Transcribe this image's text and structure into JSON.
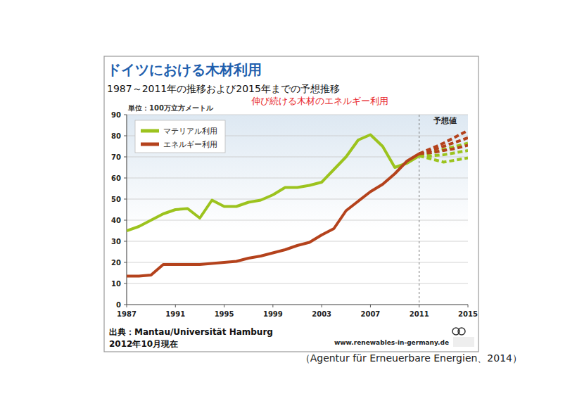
{
  "chart_data": {
    "type": "line",
    "title": "ドイツにおける木材利用",
    "subtitle": "1987～2011年の推移および2015年までの予想推移",
    "annotations": [
      {
        "text": "伸び続ける木材のエネルギー利用"
      },
      {
        "text": "予想値",
        "x": 2011
      }
    ],
    "y_label": "単位：100万立方メートル",
    "source": "出典：Mantau/Universität Hamburg",
    "date": "2012年10月現在",
    "url": "www.renewables-in-germany.de",
    "caption": "（Agentur für Erneuerbare Energien、2014）",
    "x": [
      1987,
      1988,
      1989,
      1990,
      1991,
      1992,
      1993,
      1994,
      1995,
      1996,
      1997,
      1998,
      1999,
      2000,
      2001,
      2002,
      2003,
      2004,
      2005,
      2006,
      2007,
      2008,
      2009,
      2010,
      2011,
      2012,
      2013,
      2014,
      2015
    ],
    "series": [
      {
        "name": "マテリアル利用",
        "color": "#9cc31e",
        "values": [
          35,
          37,
          40,
          43,
          45,
          45.5,
          41,
          49.5,
          46.5,
          46.5,
          48.5,
          49.5,
          52,
          55.5,
          55.5,
          56.5,
          58,
          64,
          70,
          78,
          80.5,
          75,
          65,
          67,
          70.5,
          null,
          null,
          null,
          null
        ],
        "forecasts": [
          [
            null,
            null,
            null,
            null,
            null,
            null,
            null,
            null,
            null,
            null,
            null,
            null,
            null,
            null,
            null,
            null,
            null,
            null,
            null,
            null,
            null,
            null,
            null,
            null,
            70.5,
            72,
            73.5,
            75,
            76.5
          ],
          [
            null,
            null,
            null,
            null,
            null,
            null,
            null,
            null,
            null,
            null,
            null,
            null,
            null,
            null,
            null,
            null,
            null,
            null,
            null,
            null,
            null,
            null,
            null,
            null,
            70.5,
            70.5,
            71,
            72,
            73
          ],
          [
            null,
            null,
            null,
            null,
            null,
            null,
            null,
            null,
            null,
            null,
            null,
            null,
            null,
            null,
            null,
            null,
            null,
            null,
            null,
            null,
            null,
            null,
            null,
            null,
            70.5,
            69,
            67.5,
            68.5,
            69.5
          ]
        ]
      },
      {
        "name": "エネルギー利用",
        "color": "#b4421c",
        "values": [
          13.5,
          13.5,
          14,
          19,
          19,
          19,
          19,
          19.5,
          20,
          20.5,
          22,
          23,
          24.5,
          26,
          28,
          29.5,
          33,
          36,
          44.5,
          49,
          53.5,
          57,
          62,
          68,
          71.5,
          null,
          null,
          null,
          null
        ],
        "forecasts": [
          [
            null,
            null,
            null,
            null,
            null,
            null,
            null,
            null,
            null,
            null,
            null,
            null,
            null,
            null,
            null,
            null,
            null,
            null,
            null,
            null,
            null,
            null,
            null,
            null,
            71.5,
            74,
            76.5,
            79.5,
            82.5
          ],
          [
            null,
            null,
            null,
            null,
            null,
            null,
            null,
            null,
            null,
            null,
            null,
            null,
            null,
            null,
            null,
            null,
            null,
            null,
            null,
            null,
            null,
            null,
            null,
            null,
            71.5,
            73,
            75,
            77,
            79
          ],
          [
            null,
            null,
            null,
            null,
            null,
            null,
            null,
            null,
            null,
            null,
            null,
            null,
            null,
            null,
            null,
            null,
            null,
            null,
            null,
            null,
            null,
            null,
            null,
            null,
            71.5,
            72,
            73,
            74,
            75.5
          ]
        ]
      }
    ],
    "xlim": [
      1987,
      2015
    ],
    "xticks": [
      1987,
      1991,
      1995,
      1999,
      2003,
      2007,
      2011,
      2015
    ],
    "ylim": [
      0,
      90
    ],
    "yticks": [
      0,
      10,
      20,
      30,
      40,
      50,
      60,
      70,
      80,
      90
    ],
    "grid": true,
    "legend": "top-left"
  }
}
